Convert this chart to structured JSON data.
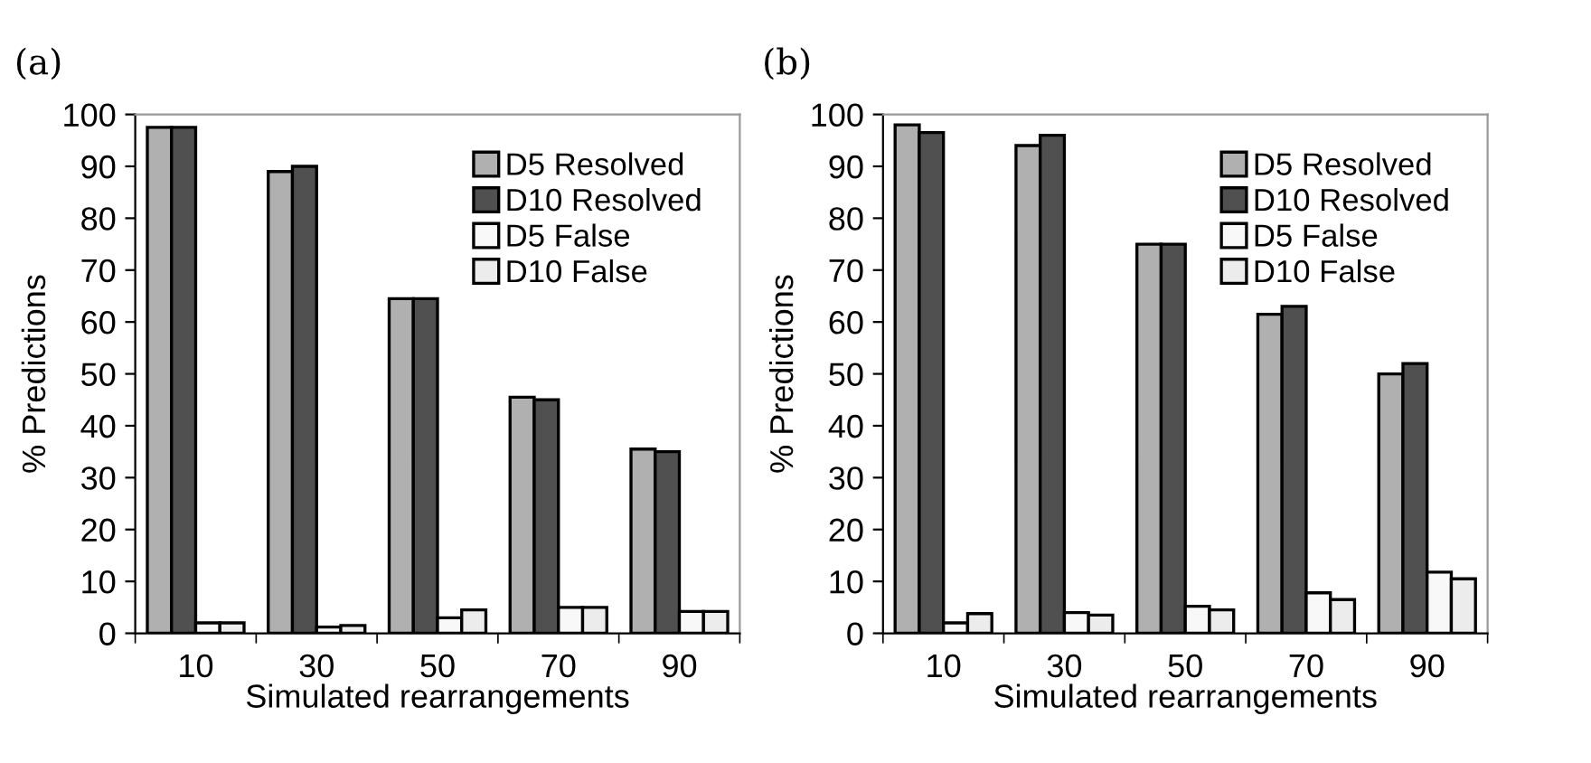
{
  "chart_data": [
    {
      "type": "bar",
      "title": "(a)",
      "xlabel": "Simulated rearrangements",
      "ylabel": "% Predictions",
      "categories": [
        "10",
        "30",
        "50",
        "70",
        "90"
      ],
      "ylim": [
        0,
        100
      ],
      "yticks": [
        0,
        10,
        20,
        30,
        40,
        50,
        60,
        70,
        80,
        90,
        100
      ],
      "grid": false,
      "legend": "top right",
      "series": [
        {
          "name": "D5 Resolved",
          "color": "#b0b0b0",
          "values": [
            97.5,
            89,
            64.5,
            45.5,
            35.5
          ]
        },
        {
          "name": "D10 Resolved",
          "color": "#505050",
          "values": [
            97.5,
            90,
            64.5,
            45,
            35
          ]
        },
        {
          "name": "D5 False",
          "color": "#f8f8f8",
          "values": [
            2,
            1.2,
            3,
            5,
            4.2
          ]
        },
        {
          "name": "D10 False",
          "color": "#ececec",
          "values": [
            2,
            1.5,
            4.5,
            5,
            4.2
          ]
        }
      ]
    },
    {
      "type": "bar",
      "title": "(b)",
      "xlabel": "Simulated rearrangements",
      "ylabel": "% Predictions",
      "categories": [
        "10",
        "30",
        "50",
        "70",
        "90"
      ],
      "ylim": [
        0,
        100
      ],
      "yticks": [
        0,
        10,
        20,
        30,
        40,
        50,
        60,
        70,
        80,
        90,
        100
      ],
      "grid": false,
      "legend": "top right",
      "series": [
        {
          "name": "D5 Resolved",
          "color": "#b0b0b0",
          "values": [
            98,
            94,
            75,
            61.5,
            50
          ]
        },
        {
          "name": "D10 Resolved",
          "color": "#505050",
          "values": [
            96.5,
            96,
            75,
            63,
            52
          ]
        },
        {
          "name": "D5 False",
          "color": "#f8f8f8",
          "values": [
            2,
            4,
            5.2,
            7.8,
            11.8
          ]
        },
        {
          "name": "D10 False",
          "color": "#ececec",
          "values": [
            3.8,
            3.5,
            4.5,
            6.5,
            10.5
          ]
        }
      ]
    }
  ]
}
